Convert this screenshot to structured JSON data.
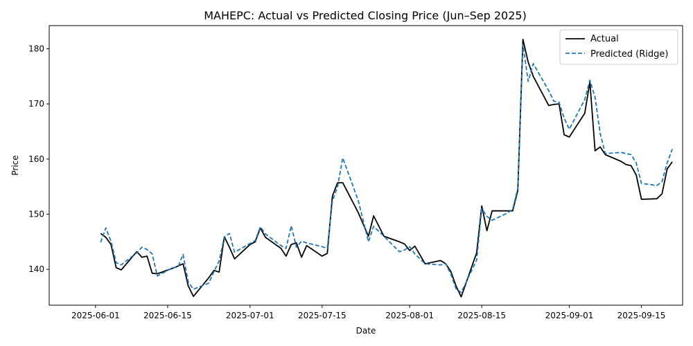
{
  "chart_data": {
    "type": "line",
    "title": "MAHEPC: Actual vs Predicted Closing Price (Jun–Sep 2025)",
    "xlabel": "Date",
    "ylabel": "Price",
    "x_ticks": [
      "2025-06-01",
      "2025-06-15",
      "2025-07-01",
      "2025-07-15",
      "2025-08-01",
      "2025-08-15",
      "2025-09-01",
      "2025-09-15"
    ],
    "y_ticks": [
      140,
      150,
      160,
      170,
      180
    ],
    "xlim": [
      "2025-05-23",
      "2025-09-23"
    ],
    "ylim": [
      133.5,
      184.2
    ],
    "grid": false,
    "legend_position": "top-right",
    "series": [
      {
        "name": "Actual",
        "color": "#000000",
        "style": "solid",
        "points": [
          [
            "2025-06-02",
            146.5
          ],
          [
            "2025-06-03",
            145.8
          ],
          [
            "2025-06-04",
            144.5
          ],
          [
            "2025-06-05",
            140.3
          ],
          [
            "2025-06-06",
            139.9
          ],
          [
            "2025-06-09",
            143.2
          ],
          [
            "2025-06-10",
            142.2
          ],
          [
            "2025-06-11",
            142.4
          ],
          [
            "2025-06-12",
            139.3
          ],
          [
            "2025-06-13",
            139.2
          ],
          [
            "2025-06-16",
            140.2
          ],
          [
            "2025-06-17",
            140.6
          ],
          [
            "2025-06-18",
            141.0
          ],
          [
            "2025-06-19",
            137.0
          ],
          [
            "2025-06-20",
            135.1
          ],
          [
            "2025-06-23",
            138.5
          ],
          [
            "2025-06-24",
            139.8
          ],
          [
            "2025-06-25",
            139.5
          ],
          [
            "2025-06-26",
            145.9
          ],
          [
            "2025-06-27",
            144.0
          ],
          [
            "2025-06-28",
            141.9
          ],
          [
            "2025-07-01",
            144.5
          ],
          [
            "2025-07-02",
            145.0
          ],
          [
            "2025-07-03",
            147.5
          ],
          [
            "2025-07-04",
            145.8
          ],
          [
            "2025-07-07",
            143.8
          ],
          [
            "2025-07-08",
            142.4
          ],
          [
            "2025-07-09",
            144.5
          ],
          [
            "2025-07-10",
            144.8
          ],
          [
            "2025-07-11",
            142.2
          ],
          [
            "2025-07-12",
            144.3
          ],
          [
            "2025-07-15",
            142.4
          ],
          [
            "2025-07-16",
            142.9
          ],
          [
            "2025-07-17",
            153.3
          ],
          [
            "2025-07-18",
            155.7
          ],
          [
            "2025-07-19",
            155.7
          ],
          [
            "2025-07-22",
            150.3
          ],
          [
            "2025-07-24",
            146.0
          ],
          [
            "2025-07-25",
            149.7
          ],
          [
            "2025-07-27",
            146.0
          ],
          [
            "2025-07-30",
            145.0
          ],
          [
            "2025-07-31",
            144.6
          ],
          [
            "2025-08-01",
            143.4
          ],
          [
            "2025-08-02",
            144.2
          ],
          [
            "2025-08-04",
            141.0
          ],
          [
            "2025-08-07",
            141.6
          ],
          [
            "2025-08-08",
            141.0
          ],
          [
            "2025-08-09",
            139.6
          ],
          [
            "2025-08-10",
            137.0
          ],
          [
            "2025-08-11",
            135.0
          ],
          [
            "2025-08-14",
            143.0
          ],
          [
            "2025-08-15",
            151.5
          ],
          [
            "2025-08-16",
            147.0
          ],
          [
            "2025-08-17",
            150.6
          ],
          [
            "2025-08-20",
            150.6
          ],
          [
            "2025-08-21",
            150.6
          ],
          [
            "2025-08-22",
            154.3
          ],
          [
            "2025-08-23",
            181.7
          ],
          [
            "2025-08-24",
            177.6
          ],
          [
            "2025-08-25",
            175.0
          ],
          [
            "2025-08-28",
            169.7
          ],
          [
            "2025-08-29",
            169.9
          ],
          [
            "2025-08-30",
            170.0
          ],
          [
            "2025-08-31",
            164.4
          ],
          [
            "2025-09-01",
            164.0
          ],
          [
            "2025-09-04",
            168.3
          ],
          [
            "2025-09-05",
            174.0
          ],
          [
            "2025-09-06",
            161.5
          ],
          [
            "2025-09-07",
            162.2
          ],
          [
            "2025-09-08",
            160.8
          ],
          [
            "2025-09-11",
            159.6
          ],
          [
            "2025-09-12",
            159.0
          ],
          [
            "2025-09-13",
            158.8
          ],
          [
            "2025-09-14",
            157.1
          ],
          [
            "2025-09-15",
            152.7
          ],
          [
            "2025-09-18",
            152.8
          ],
          [
            "2025-09-19",
            153.7
          ],
          [
            "2025-09-20",
            158.2
          ],
          [
            "2025-09-21",
            159.5
          ]
        ]
      },
      {
        "name": "Predicted (Ridge)",
        "color": "#1f77b4",
        "style": "dashed",
        "points": [
          [
            "2025-06-02",
            144.9
          ],
          [
            "2025-06-03",
            147.5
          ],
          [
            "2025-06-04",
            145.1
          ],
          [
            "2025-06-05",
            141.2
          ],
          [
            "2025-06-06",
            140.8
          ],
          [
            "2025-06-09",
            143.0
          ],
          [
            "2025-06-10",
            144.0
          ],
          [
            "2025-06-11",
            143.6
          ],
          [
            "2025-06-12",
            142.8
          ],
          [
            "2025-06-13",
            138.8
          ],
          [
            "2025-06-16",
            140.3
          ],
          [
            "2025-06-17",
            140.4
          ],
          [
            "2025-06-18",
            142.7
          ],
          [
            "2025-06-19",
            137.7
          ],
          [
            "2025-06-20",
            136.4
          ],
          [
            "2025-06-23",
            137.5
          ],
          [
            "2025-06-24",
            139.6
          ],
          [
            "2025-06-25",
            141.5
          ],
          [
            "2025-06-26",
            145.9
          ],
          [
            "2025-06-27",
            146.5
          ],
          [
            "2025-06-28",
            143.1
          ],
          [
            "2025-07-01",
            144.7
          ],
          [
            "2025-07-02",
            145.2
          ],
          [
            "2025-07-03",
            147.7
          ],
          [
            "2025-07-04",
            146.4
          ],
          [
            "2025-07-07",
            144.3
          ],
          [
            "2025-07-08",
            143.8
          ],
          [
            "2025-07-09",
            147.9
          ],
          [
            "2025-07-10",
            144.0
          ],
          [
            "2025-07-11",
            145.1
          ],
          [
            "2025-07-12",
            144.8
          ],
          [
            "2025-07-15",
            144.1
          ],
          [
            "2025-07-16",
            143.8
          ],
          [
            "2025-07-17",
            152.4
          ],
          [
            "2025-07-18",
            155.0
          ],
          [
            "2025-07-19",
            160.2
          ],
          [
            "2025-07-22",
            152.5
          ],
          [
            "2025-07-24",
            145.0
          ],
          [
            "2025-07-25",
            147.8
          ],
          [
            "2025-07-27",
            146.0
          ],
          [
            "2025-07-30",
            143.2
          ],
          [
            "2025-07-31",
            143.5
          ],
          [
            "2025-08-01",
            144.1
          ],
          [
            "2025-08-02",
            142.8
          ],
          [
            "2025-08-04",
            141.0
          ],
          [
            "2025-08-07",
            140.8
          ],
          [
            "2025-08-08",
            141.0
          ],
          [
            "2025-08-09",
            139.1
          ],
          [
            "2025-08-10",
            136.5
          ],
          [
            "2025-08-11",
            135.8
          ],
          [
            "2025-08-14",
            141.7
          ],
          [
            "2025-08-15",
            151.0
          ],
          [
            "2025-08-16",
            149.6
          ],
          [
            "2025-08-17",
            148.9
          ],
          [
            "2025-08-20",
            150.2
          ],
          [
            "2025-08-21",
            150.9
          ],
          [
            "2025-08-22",
            154.7
          ],
          [
            "2025-08-23",
            180.8
          ],
          [
            "2025-08-24",
            174.1
          ],
          [
            "2025-08-25",
            177.3
          ],
          [
            "2025-08-28",
            172.4
          ],
          [
            "2025-08-29",
            170.5
          ],
          [
            "2025-08-30",
            170.3
          ],
          [
            "2025-08-31",
            167.4
          ],
          [
            "2025-09-01",
            165.4
          ],
          [
            "2025-09-04",
            170.8
          ],
          [
            "2025-09-05",
            174.3
          ],
          [
            "2025-09-06",
            171.2
          ],
          [
            "2025-09-07",
            164.6
          ],
          [
            "2025-09-08",
            161.0
          ],
          [
            "2025-09-11",
            161.2
          ],
          [
            "2025-09-12",
            161.0
          ],
          [
            "2025-09-13",
            160.8
          ],
          [
            "2025-09-14",
            159.3
          ],
          [
            "2025-09-15",
            155.6
          ],
          [
            "2025-09-18",
            155.2
          ],
          [
            "2025-09-19",
            155.9
          ],
          [
            "2025-09-20",
            159.3
          ],
          [
            "2025-09-21",
            161.8
          ]
        ]
      }
    ]
  }
}
